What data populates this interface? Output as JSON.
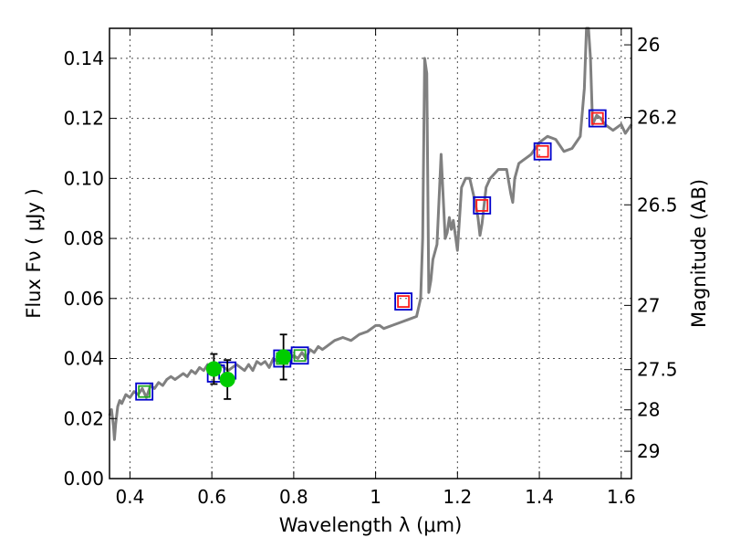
{
  "chart_data": {
    "type": "scatter",
    "title": "",
    "xlabel": "Wavelength  λ (μm)",
    "ylabel": "Flux  Fν  ( μJy )",
    "ylabel_right": "Magnitude (AB)",
    "xlim": [
      0.35,
      1.625
    ],
    "ylim": [
      0.0,
      0.15
    ],
    "grid": true,
    "x_ticks": [
      0.4,
      0.6,
      0.8,
      1.0,
      1.2,
      1.4,
      1.6
    ],
    "x_tick_labels": [
      "0.4",
      "0.6",
      "0.8",
      "1",
      "1.2",
      "1.4",
      "1.6"
    ],
    "y_ticks": [
      0.0,
      0.02,
      0.04,
      0.06,
      0.08,
      0.1,
      0.12,
      0.14
    ],
    "y_tick_labels": [
      "0.00",
      "0.02",
      "0.04",
      "0.06",
      "0.08",
      "0.10",
      "0.12",
      "0.14"
    ],
    "right_ticks": [
      {
        "label": "26",
        "flux": 0.1445
      },
      {
        "label": "26.2",
        "flux": 0.1203
      },
      {
        "label": "26.5",
        "flux": 0.0912
      },
      {
        "label": "27",
        "flux": 0.0577
      },
      {
        "label": "27.5",
        "flux": 0.0363
      },
      {
        "label": "28",
        "flux": 0.0229
      },
      {
        "label": "29",
        "flux": 0.0091
      }
    ],
    "series": [
      {
        "type": "line",
        "color": "#808080",
        "x": [
          0.35,
          0.355,
          0.36,
          0.362,
          0.365,
          0.37,
          0.375,
          0.38,
          0.39,
          0.4,
          0.41,
          0.42,
          0.43,
          0.44,
          0.45,
          0.46,
          0.47,
          0.48,
          0.49,
          0.5,
          0.51,
          0.52,
          0.53,
          0.54,
          0.55,
          0.56,
          0.57,
          0.58,
          0.59,
          0.6,
          0.61,
          0.62,
          0.63,
          0.64,
          0.65,
          0.66,
          0.67,
          0.68,
          0.69,
          0.7,
          0.71,
          0.72,
          0.73,
          0.74,
          0.75,
          0.76,
          0.77,
          0.78,
          0.79,
          0.8,
          0.81,
          0.82,
          0.83,
          0.84,
          0.85,
          0.86,
          0.87,
          0.88,
          0.9,
          0.92,
          0.94,
          0.96,
          0.98,
          1.0,
          1.01,
          1.02,
          1.04,
          1.06,
          1.08,
          1.1,
          1.11,
          1.115,
          1.12,
          1.125,
          1.13,
          1.135,
          1.14,
          1.15,
          1.16,
          1.17,
          1.175,
          1.18,
          1.185,
          1.19,
          1.2,
          1.21,
          1.22,
          1.23,
          1.24,
          1.25,
          1.255,
          1.26,
          1.27,
          1.28,
          1.3,
          1.32,
          1.33,
          1.335,
          1.34,
          1.35,
          1.36,
          1.37,
          1.38,
          1.4,
          1.42,
          1.44,
          1.46,
          1.48,
          1.5,
          1.51,
          1.515,
          1.52,
          1.525,
          1.53,
          1.54,
          1.55,
          1.56,
          1.58,
          1.6,
          1.61,
          1.62,
          1.625
        ],
        "y": [
          0.021,
          0.023,
          0.017,
          0.013,
          0.018,
          0.024,
          0.026,
          0.025,
          0.028,
          0.027,
          0.029,
          0.028,
          0.03,
          0.027,
          0.031,
          0.03,
          0.032,
          0.031,
          0.033,
          0.034,
          0.033,
          0.034,
          0.035,
          0.034,
          0.036,
          0.035,
          0.037,
          0.036,
          0.038,
          0.037,
          0.036,
          0.038,
          0.037,
          0.036,
          0.037,
          0.038,
          0.037,
          0.036,
          0.038,
          0.036,
          0.039,
          0.038,
          0.039,
          0.037,
          0.04,
          0.039,
          0.041,
          0.039,
          0.04,
          0.041,
          0.04,
          0.042,
          0.04,
          0.043,
          0.042,
          0.044,
          0.043,
          0.044,
          0.046,
          0.047,
          0.046,
          0.048,
          0.049,
          0.051,
          0.051,
          0.05,
          0.051,
          0.052,
          0.053,
          0.054,
          0.06,
          0.08,
          0.14,
          0.135,
          0.062,
          0.066,
          0.073,
          0.078,
          0.108,
          0.08,
          0.082,
          0.087,
          0.083,
          0.086,
          0.076,
          0.097,
          0.1,
          0.1,
          0.094,
          0.087,
          0.081,
          0.085,
          0.097,
          0.1,
          0.103,
          0.103,
          0.095,
          0.092,
          0.1,
          0.105,
          0.106,
          0.107,
          0.108,
          0.112,
          0.114,
          0.113,
          0.109,
          0.11,
          0.114,
          0.13,
          0.15,
          0.15,
          0.14,
          0.118,
          0.121,
          0.12,
          0.118,
          0.116,
          0.118,
          0.115,
          0.117,
          0.118
        ]
      },
      {
        "type": "square",
        "edgecolor": "#0000cc",
        "x": [
          0.435,
          0.61,
          0.638,
          0.772,
          0.815,
          1.068,
          1.26,
          1.408,
          1.542
        ],
        "y": [
          0.029,
          0.035,
          0.036,
          0.04,
          0.041,
          0.059,
          0.091,
          0.109,
          0.12
        ]
      },
      {
        "type": "square",
        "edgecolor": "#ff1a1a",
        "x": [
          1.068,
          1.26,
          1.408,
          1.542
        ],
        "y": [
          0.059,
          0.091,
          0.109,
          0.12
        ]
      },
      {
        "type": "square",
        "edgecolor": "#22aa22",
        "x": [
          0.435,
          0.772,
          0.815
        ],
        "y": [
          0.029,
          0.04,
          0.041
        ]
      },
      {
        "type": "errorbar",
        "color": "#00cc00",
        "x": [
          0.605,
          0.638,
          0.775
        ],
        "y": [
          0.0365,
          0.033,
          0.0405
        ],
        "yerr": [
          0.005,
          0.0065,
          0.0075
        ]
      }
    ]
  }
}
